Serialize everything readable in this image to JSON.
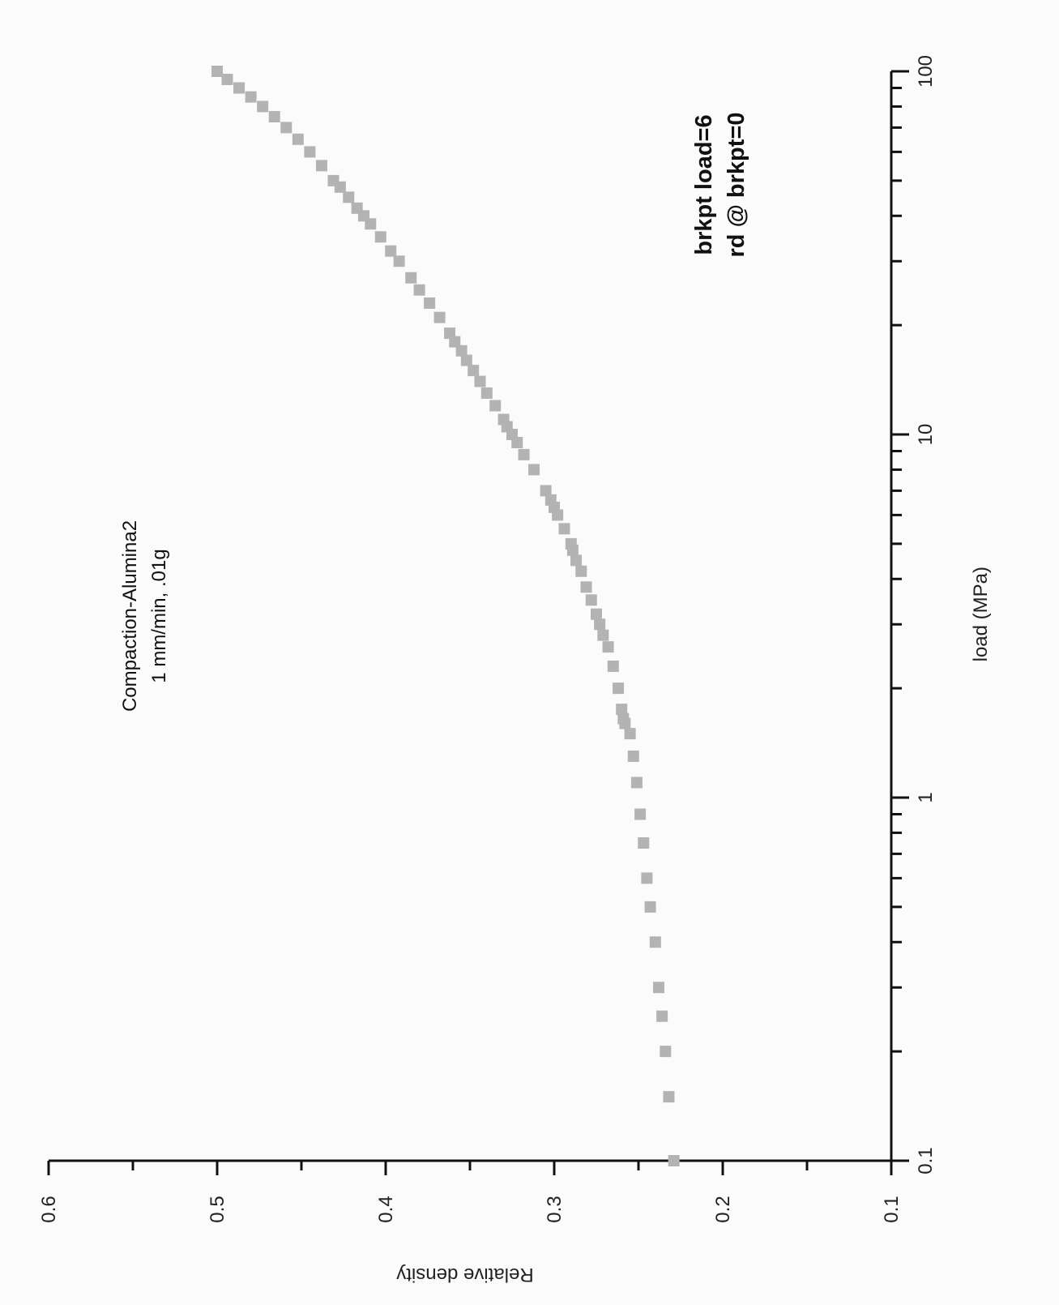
{
  "chart_data": {
    "type": "scatter",
    "title": "",
    "xlabel": "load (MPa)",
    "ylabel": "Relative density",
    "x_scale": "log",
    "xlim": [
      0.1,
      100
    ],
    "ylim": [
      0.1,
      0.6
    ],
    "x_ticks": [
      "0.1",
      "1",
      "10",
      "100"
    ],
    "y_ticks": [
      "0.1",
      "0.2",
      "0.3",
      "0.4",
      "0.5",
      "0.6"
    ],
    "grid": false,
    "legend": "none",
    "marker_color": "#b3b3b3",
    "annotations": {
      "sample_title": "Compaction-Alumina2",
      "sample_subtitle": "1 mm/min, .01g",
      "breakpoint_load": "brkpt load=6",
      "breakpoint_rd": "rd @ brkpt=0"
    },
    "series": [
      {
        "x": [
          0.1,
          0.15,
          0.2,
          0.25,
          0.3,
          0.4,
          0.5,
          0.6,
          0.75,
          0.9,
          1.1,
          1.3,
          1.5,
          1.6,
          1.65,
          1.75,
          2.0,
          2.3,
          2.6,
          2.8,
          3.0,
          3.2,
          3.5,
          3.8,
          4.2,
          4.5,
          4.8,
          5.0,
          5.5,
          6.0,
          6.3,
          6.6,
          7.0,
          8.0,
          8.8,
          9.5,
          10.0,
          10.5,
          11.0,
          12.0,
          13.0,
          14.0,
          15.0,
          16.0,
          17.0,
          18.0,
          19.0,
          21.0,
          23.0,
          25.0,
          27.0,
          30.0,
          32.0,
          35.0,
          38.0,
          40.0,
          42.0,
          45.0,
          48.0,
          50.0,
          55.0,
          60.0,
          65.0,
          70.0,
          75.0,
          80.0,
          85.0,
          90.0,
          95.0,
          100.0
        ],
        "y": [
          0.229,
          0.232,
          0.234,
          0.236,
          0.238,
          0.24,
          0.243,
          0.245,
          0.247,
          0.249,
          0.251,
          0.253,
          0.255,
          0.258,
          0.259,
          0.26,
          0.262,
          0.265,
          0.268,
          0.271,
          0.273,
          0.275,
          0.278,
          0.281,
          0.284,
          0.287,
          0.289,
          0.29,
          0.294,
          0.298,
          0.3,
          0.302,
          0.305,
          0.312,
          0.318,
          0.322,
          0.325,
          0.328,
          0.33,
          0.335,
          0.34,
          0.344,
          0.348,
          0.352,
          0.355,
          0.359,
          0.362,
          0.368,
          0.374,
          0.38,
          0.385,
          0.392,
          0.397,
          0.403,
          0.409,
          0.413,
          0.417,
          0.422,
          0.427,
          0.431,
          0.438,
          0.445,
          0.452,
          0.459,
          0.466,
          0.473,
          0.48,
          0.487,
          0.494,
          0.5
        ]
      }
    ]
  }
}
